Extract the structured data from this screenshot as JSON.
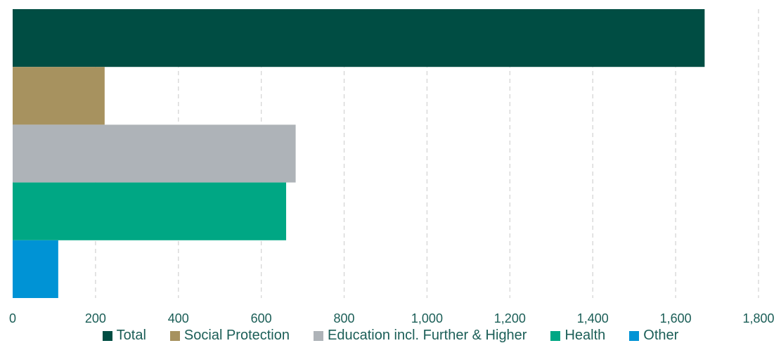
{
  "chart_data": {
    "type": "bar",
    "orientation": "horizontal",
    "title": "",
    "xlabel": "",
    "ylabel": "",
    "xlim": [
      0,
      1800
    ],
    "x_ticks": [
      "0",
      "200",
      "400",
      "600",
      "800",
      "1,000",
      "1,200",
      "1,400",
      "1,600",
      "1,800"
    ],
    "grid": "vertical dashed",
    "legend_position": "bottom",
    "series": [
      {
        "name": "Total",
        "value": 1670,
        "color": "#004d43"
      },
      {
        "name": "Social Protection",
        "value": 222,
        "color": "#a7925f"
      },
      {
        "name": "Education incl. Further & Higher",
        "value": 683,
        "color": "#aeb3b8"
      },
      {
        "name": "Health",
        "value": 660,
        "color": "#00a784"
      },
      {
        "name": "Other",
        "value": 110,
        "color": "#0093d5"
      }
    ]
  }
}
